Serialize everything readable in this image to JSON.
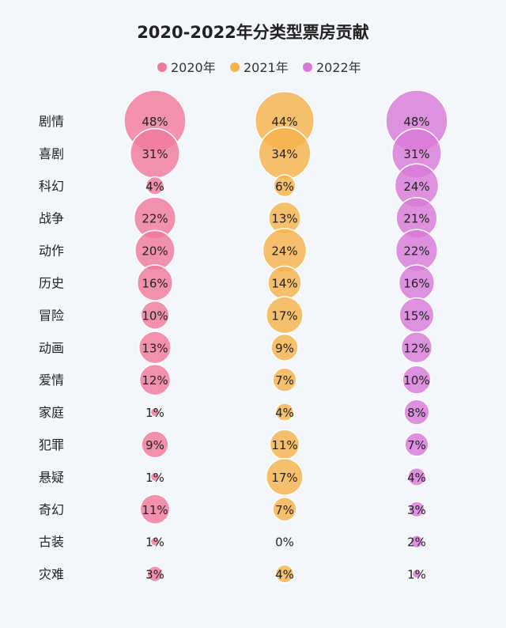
{
  "chart_data": {
    "type": "bubble",
    "title": "2020-2022年分类型票房贡献",
    "categories": [
      "剧情",
      "喜剧",
      "科幻",
      "战争",
      "动作",
      "历史",
      "冒险",
      "动画",
      "爱情",
      "家庭",
      "犯罪",
      "悬疑",
      "奇幻",
      "古装",
      "灾难"
    ],
    "series": [
      {
        "name": "2020年",
        "color": "#f07a9c",
        "values": [
          48,
          31,
          4,
          22,
          20,
          16,
          10,
          13,
          12,
          1,
          9,
          1,
          11,
          1,
          3
        ],
        "labels": [
          "48%",
          "31%",
          "4%",
          "22%",
          "20%",
          "16%",
          "10%",
          "13%",
          "12%",
          "1%",
          "9%",
          "1%",
          "11%",
          "1%",
          "3%"
        ]
      },
      {
        "name": "2021年",
        "color": "#f6b24d",
        "values": [
          44,
          34,
          6,
          13,
          24,
          14,
          17,
          9,
          7,
          4,
          11,
          17,
          7,
          0,
          4
        ],
        "labels": [
          "44%",
          "34%",
          "6%",
          "13%",
          "24%",
          "14%",
          "17%",
          "9%",
          "7%",
          "4%",
          "11%",
          "17%",
          "7%",
          "0%",
          "4%"
        ]
      },
      {
        "name": "2022年",
        "color": "#d97ad8",
        "values": [
          48,
          31,
          24,
          21,
          22,
          16,
          15,
          12,
          10,
          8,
          7,
          4,
          3,
          2,
          1
        ],
        "labels": [
          "48%",
          "31%",
          "24%",
          "21%",
          "22%",
          "16%",
          "15%",
          "12%",
          "10%",
          "8%",
          "7%",
          "4%",
          "3%",
          "2%",
          "1%"
        ]
      }
    ],
    "legend_position": "top"
  }
}
